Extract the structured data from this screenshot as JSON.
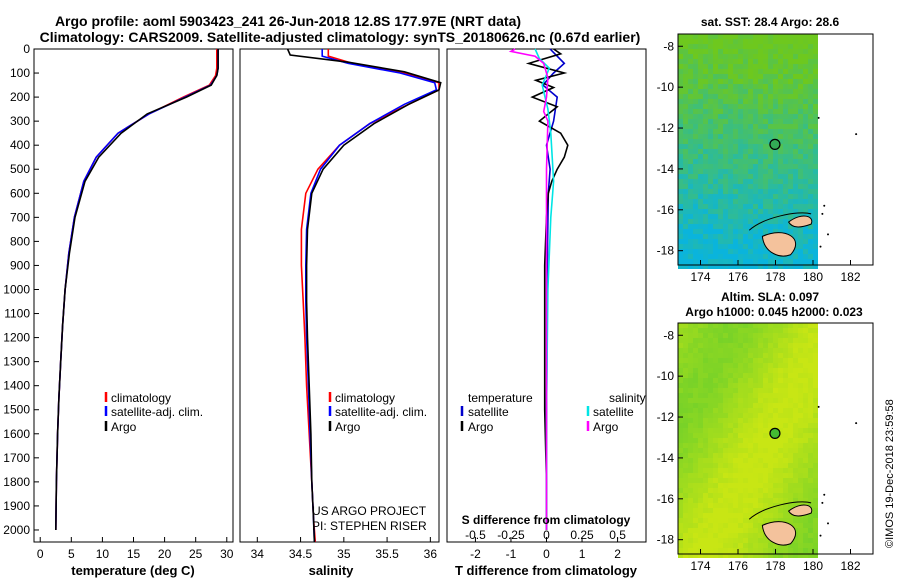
{
  "header": {
    "title_line1": "Argo profile: aoml 5903423_241 26-Jun-2018 12.8S 177.97E (NRT data)",
    "title_line2": "Climatology: CARS2009. Satellite-adjusted climatology: synTS_20180626.nc (0.67d earlier)"
  },
  "colors": {
    "climatology": "#ff0000",
    "satellite_adj": "#0000ff",
    "argo": "#000000",
    "t_satellite": "#0000cc",
    "s_satellite": "#00e5e5",
    "s_argo": "#ff00ff",
    "land": "#f4c29c"
  },
  "chart_data": [
    {
      "type": "line",
      "id": "temperature",
      "xlabel": "temperature (deg C)",
      "ylim": [
        2050,
        0
      ],
      "xlim": [
        -1,
        31
      ],
      "xticks": [
        0,
        5,
        10,
        15,
        20,
        25,
        30
      ],
      "yticks": [
        0,
        100,
        200,
        300,
        400,
        500,
        600,
        700,
        800,
        900,
        1000,
        1100,
        1200,
        1300,
        1400,
        1500,
        1600,
        1700,
        1800,
        1900,
        2000
      ],
      "series": [
        {
          "name": "climatology",
          "x": [
            28.4,
            28.4,
            28.2,
            27.2,
            23,
            17.5,
            12.5,
            9,
            7,
            5.5,
            4.6,
            4,
            3.6,
            3.3,
            3,
            2.8,
            2.6,
            2.5
          ],
          "y": [
            0,
            80,
            110,
            150,
            200,
            270,
            350,
            450,
            550,
            700,
            850,
            1000,
            1150,
            1300,
            1450,
            1600,
            1800,
            2000
          ]
        },
        {
          "name": "satellite-adj. clim.",
          "x": [
            28.6,
            28.6,
            28.4,
            27.4,
            23.3,
            17.5,
            12.5,
            9,
            7,
            5.5,
            4.6,
            4,
            3.6,
            3.3,
            3,
            2.8,
            2.6,
            2.5
          ],
          "y": [
            0,
            80,
            110,
            150,
            200,
            270,
            350,
            450,
            550,
            700,
            850,
            1000,
            1150,
            1300,
            1450,
            1600,
            1800,
            2000
          ]
        },
        {
          "name": "Argo",
          "x": [
            28.6,
            28.6,
            28.4,
            27.5,
            23.5,
            17.2,
            13,
            9.4,
            7.2,
            5.6,
            4.7,
            4,
            3.6,
            3.3,
            3,
            2.8,
            2.6,
            2.5
          ],
          "y": [
            0,
            80,
            110,
            150,
            200,
            270,
            350,
            450,
            550,
            700,
            850,
            1000,
            1150,
            1300,
            1450,
            1600,
            1800,
            2000
          ]
        }
      ],
      "legend": {
        "items": [
          "climatology",
          "satellite-adj. clim.",
          "Argo"
        ]
      }
    },
    {
      "type": "line",
      "id": "salinity",
      "xlabel": "salinity",
      "ylim": [
        2050,
        0
      ],
      "xlim": [
        33.8,
        36.1
      ],
      "xticks": [
        34,
        34.5,
        35,
        35.5,
        36
      ],
      "series": [
        {
          "name": "climatology",
          "x": [
            34.82,
            34.82,
            35.1,
            35.7,
            36.1,
            36.1,
            35.75,
            35.3,
            34.95,
            34.7,
            34.56,
            34.51,
            34.51,
            34.53,
            34.55,
            34.57,
            34.6,
            34.63,
            34.65,
            34.67
          ],
          "y": [
            0,
            30,
            60,
            100,
            140,
            170,
            230,
            310,
            400,
            500,
            600,
            750,
            900,
            1050,
            1200,
            1400,
            1600,
            1800,
            1950,
            2050
          ]
        },
        {
          "name": "satellite-adj. clim.",
          "x": [
            34.75,
            34.75,
            35.05,
            35.65,
            36.05,
            36.07,
            35.7,
            35.3,
            34.95,
            34.73,
            34.62,
            34.57,
            34.56,
            34.56,
            34.57,
            34.59,
            34.61,
            34.63,
            34.65,
            34.66
          ],
          "y": [
            0,
            30,
            60,
            100,
            140,
            170,
            230,
            310,
            400,
            500,
            600,
            750,
            900,
            1050,
            1200,
            1400,
            1600,
            1800,
            1950,
            2050
          ]
        },
        {
          "name": "Argo",
          "x": [
            34.35,
            34.38,
            35.05,
            35.7,
            36.12,
            36.1,
            35.75,
            35.35,
            35,
            34.76,
            34.63,
            34.58,
            34.57,
            34.57,
            34.58,
            34.6,
            34.62,
            34.63,
            34.65,
            34.66
          ],
          "y": [
            0,
            25,
            55,
            95,
            140,
            170,
            230,
            310,
            400,
            500,
            600,
            750,
            900,
            1050,
            1200,
            1400,
            1600,
            1800,
            1950,
            2050
          ]
        }
      ],
      "legend": {
        "items": [
          "climatology",
          "satellite-adj. clim.",
          "Argo"
        ]
      },
      "annotations": [
        "US ARGO PROJECT",
        "PI: STEPHEN RISER"
      ]
    },
    {
      "type": "line",
      "id": "differences",
      "xlabel": "T difference from climatology",
      "xlabel_secondary": "S difference from climatology",
      "ylim": [
        2050,
        0
      ],
      "xlim": [
        -2.8,
        2.8
      ],
      "xticks": [
        -2,
        -1,
        0,
        1,
        2
      ],
      "xticks_secondary": [
        -0.5,
        -0.25,
        0,
        0.25,
        0.5
      ],
      "xlim_secondary": [
        -0.7,
        0.7
      ],
      "series": [
        {
          "name": "temperature satellite",
          "axis": "T",
          "x": [
            0.1,
            0.3,
            0.5,
            0.2,
            -0.1,
            0.3,
            0.2,
            0,
            0.1,
            0.05,
            0.03,
            0.02,
            0.01,
            0,
            0
          ],
          "y": [
            0,
            30,
            60,
            100,
            150,
            200,
            300,
            400,
            500,
            600,
            800,
            1000,
            1300,
            1600,
            2000
          ]
        },
        {
          "name": "temperature Argo",
          "x": [
            0.2,
            0.4,
            -0.5,
            0.5,
            -0.3,
            0.2,
            -0.4,
            0.3,
            -0.2,
            0.4,
            0.6,
            0.5,
            0.3,
            0.15,
            0.05,
            0,
            -0.05,
            -0.05,
            -0.05,
            0,
            0
          ],
          "y": [
            0,
            20,
            60,
            100,
            130,
            160,
            200,
            240,
            300,
            350,
            400,
            450,
            500,
            550,
            600,
            700,
            900,
            1200,
            1500,
            1800,
            2000
          ]
        },
        {
          "name": "salinity satellite",
          "axis": "S",
          "x": [
            -0.08,
            -0.05,
            0.02,
            -0.03,
            0.01,
            0.03,
            0.04,
            0.05,
            0.03,
            0.01,
            0,
            0
          ],
          "y": [
            0,
            40,
            80,
            150,
            250,
            350,
            450,
            550,
            700,
            1000,
            1500,
            2000
          ]
        },
        {
          "name": "salinity Argo",
          "axis": "S",
          "x": [
            -0.22,
            -0.25,
            -0.08,
            -0.02,
            0.01,
            0,
            -0.02,
            0.01,
            0,
            0,
            0
          ],
          "y": [
            0,
            10,
            30,
            60,
            120,
            200,
            260,
            300,
            500,
            1000,
            2000
          ]
        }
      ],
      "legend": {
        "left_heading": "temperature",
        "right_heading": "salinity",
        "left_items": [
          "satellite",
          "Argo"
        ],
        "right_items": [
          "satellite",
          "Argo"
        ]
      }
    },
    {
      "type": "heatmap",
      "id": "sst_map",
      "title": "sat. SST: 28.4 Argo: 28.6",
      "xticks": [
        174,
        176,
        178,
        180,
        182
      ],
      "yticks": [
        -8,
        -10,
        -12,
        -14,
        -16,
        -18
      ],
      "xlim": [
        172.8,
        183.2
      ],
      "ylim": [
        -18.7,
        -7.4
      ],
      "data_extent_lon": [
        172.8,
        180.1
      ],
      "float_position": {
        "lon": 177.97,
        "lat": -12.8
      }
    },
    {
      "type": "heatmap",
      "id": "sla_map",
      "title": "Altim. SLA: 0.097",
      "subtitle": "Argo h1000: 0.045 h2000: 0.023",
      "xticks": [
        174,
        176,
        178,
        180,
        182
      ],
      "yticks": [
        -8,
        -10,
        -12,
        -14,
        -16,
        -18
      ],
      "xlim": [
        172.8,
        183.2
      ],
      "ylim": [
        -18.7,
        -7.4
      ],
      "data_extent_lon": [
        172.8,
        180.1
      ],
      "float_position": {
        "lon": 177.97,
        "lat": -12.8
      }
    }
  ],
  "footer": {
    "credit": "©IMOS 19-Dec-2018 23:59:58"
  }
}
